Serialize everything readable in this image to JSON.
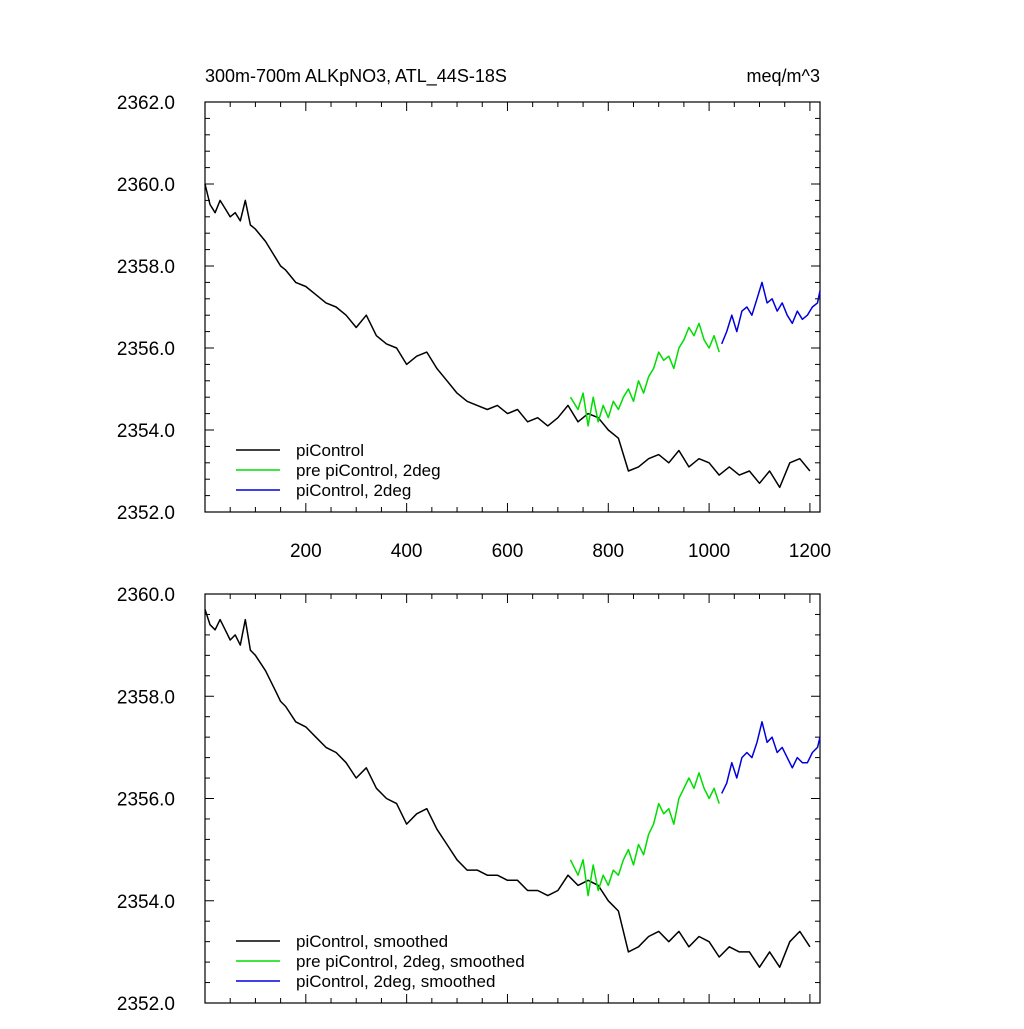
{
  "chart_data": [
    {
      "type": "line",
      "title": "300m-700m ALKpNO3, ATL_44S-18S",
      "units": "meq/m^3",
      "xlim": [
        0,
        1220
      ],
      "ylim": [
        2352.0,
        2362.0
      ],
      "x_ticks": [
        200,
        400,
        600,
        800,
        1000,
        1200
      ],
      "x_tick_labels": [
        "200",
        "400",
        "600",
        "800",
        "1000",
        "1200"
      ],
      "y_ticks": [
        2352.0,
        2354.0,
        2356.0,
        2358.0,
        2360.0,
        2362.0
      ],
      "y_tick_labels": [
        "2352.0",
        "2354.0",
        "2356.0",
        "2358.0",
        "2360.0",
        "2362.0"
      ],
      "legend_position": "bottom-left",
      "grid": false,
      "series": [
        {
          "name": "piControl",
          "color": "#000000",
          "x": [
            0,
            10,
            20,
            30,
            40,
            50,
            60,
            70,
            80,
            90,
            100,
            120,
            140,
            150,
            160,
            180,
            200,
            220,
            240,
            260,
            280,
            300,
            320,
            340,
            360,
            380,
            400,
            420,
            440,
            460,
            480,
            500,
            520,
            540,
            560,
            580,
            600,
            620,
            640,
            660,
            680,
            700,
            720,
            740,
            760,
            780,
            800,
            820,
            840,
            860,
            880,
            900,
            920,
            940,
            960,
            980,
            1000,
            1020,
            1040,
            1060,
            1080,
            1100,
            1120,
            1140,
            1160,
            1180,
            1200
          ],
          "values": [
            2360.0,
            2359.5,
            2359.3,
            2359.6,
            2359.4,
            2359.2,
            2359.3,
            2359.1,
            2359.6,
            2359.0,
            2358.9,
            2358.6,
            2358.2,
            2358.0,
            2357.9,
            2357.6,
            2357.5,
            2357.3,
            2357.1,
            2357.0,
            2356.8,
            2356.5,
            2356.8,
            2356.3,
            2356.1,
            2356.0,
            2355.6,
            2355.8,
            2355.9,
            2355.5,
            2355.2,
            2354.9,
            2354.7,
            2354.6,
            2354.5,
            2354.6,
            2354.4,
            2354.5,
            2354.2,
            2354.3,
            2354.1,
            2354.3,
            2354.6,
            2354.2,
            2354.4,
            2354.3,
            2354.0,
            2353.8,
            2353.0,
            2353.1,
            2353.3,
            2353.4,
            2353.2,
            2353.5,
            2353.1,
            2353.3,
            2353.2,
            2352.9,
            2353.1,
            2352.9,
            2353.0,
            2352.7,
            2353.0,
            2352.6,
            2353.2,
            2353.3,
            2353.0
          ]
        },
        {
          "name": "pre piControl, 2deg",
          "color": "#00dd00",
          "x": [
            725,
            740,
            750,
            760,
            770,
            780,
            790,
            800,
            810,
            820,
            830,
            840,
            850,
            860,
            870,
            880,
            890,
            900,
            910,
            920,
            930,
            940,
            950,
            960,
            970,
            980,
            990,
            1000,
            1010,
            1020
          ],
          "values": [
            2354.8,
            2354.5,
            2354.9,
            2354.1,
            2354.8,
            2354.2,
            2354.6,
            2354.3,
            2354.7,
            2354.5,
            2354.8,
            2355.0,
            2354.7,
            2355.2,
            2354.9,
            2355.3,
            2355.5,
            2355.9,
            2355.7,
            2355.8,
            2355.5,
            2356.0,
            2356.2,
            2356.5,
            2356.3,
            2356.6,
            2356.2,
            2356.0,
            2356.3,
            2355.9
          ]
        },
        {
          "name": "piControl, 2deg",
          "color": "#0000dd",
          "x": [
            1025,
            1035,
            1045,
            1055,
            1065,
            1075,
            1085,
            1095,
            1105,
            1115,
            1125,
            1135,
            1145,
            1155,
            1165,
            1175,
            1185,
            1195,
            1205,
            1215,
            1220
          ],
          "values": [
            2356.1,
            2356.4,
            2356.8,
            2356.4,
            2356.9,
            2357.0,
            2356.8,
            2357.2,
            2357.6,
            2357.1,
            2357.2,
            2356.9,
            2357.1,
            2356.8,
            2356.6,
            2356.9,
            2356.7,
            2356.8,
            2357.0,
            2357.1,
            2357.4
          ]
        }
      ]
    },
    {
      "type": "line",
      "title": "",
      "xlim": [
        0,
        1220
      ],
      "ylim": [
        2352.0,
        2360.0
      ],
      "x_ticks": [
        200,
        400,
        600,
        800,
        1000,
        1200
      ],
      "y_ticks": [
        2352.0,
        2354.0,
        2356.0,
        2358.0,
        2360.0
      ],
      "y_tick_labels": [
        "2352.0",
        "2354.0",
        "2356.0",
        "2358.0",
        "2360.0"
      ],
      "legend_position": "bottom-left",
      "grid": false,
      "series": [
        {
          "name": "piControl, smoothed",
          "color": "#000000",
          "x": [
            0,
            10,
            20,
            30,
            40,
            50,
            60,
            70,
            80,
            90,
            100,
            120,
            140,
            150,
            160,
            180,
            200,
            220,
            240,
            260,
            280,
            300,
            320,
            340,
            360,
            380,
            400,
            420,
            440,
            460,
            480,
            500,
            520,
            540,
            560,
            580,
            600,
            620,
            640,
            660,
            680,
            700,
            720,
            740,
            760,
            780,
            800,
            820,
            840,
            860,
            880,
            900,
            920,
            940,
            960,
            980,
            1000,
            1020,
            1040,
            1060,
            1080,
            1100,
            1120,
            1140,
            1160,
            1180,
            1200
          ],
          "values": [
            2359.7,
            2359.4,
            2359.3,
            2359.5,
            2359.3,
            2359.1,
            2359.2,
            2359.0,
            2359.5,
            2358.9,
            2358.8,
            2358.5,
            2358.1,
            2357.9,
            2357.8,
            2357.5,
            2357.4,
            2357.2,
            2357.0,
            2356.9,
            2356.7,
            2356.4,
            2356.6,
            2356.2,
            2356.0,
            2355.9,
            2355.5,
            2355.7,
            2355.8,
            2355.4,
            2355.1,
            2354.8,
            2354.6,
            2354.6,
            2354.5,
            2354.5,
            2354.4,
            2354.4,
            2354.2,
            2354.2,
            2354.1,
            2354.2,
            2354.5,
            2354.3,
            2354.4,
            2354.3,
            2354.0,
            2353.8,
            2353.0,
            2353.1,
            2353.3,
            2353.4,
            2353.2,
            2353.4,
            2353.1,
            2353.3,
            2353.2,
            2352.9,
            2353.1,
            2353.0,
            2353.0,
            2352.7,
            2353.0,
            2352.7,
            2353.2,
            2353.4,
            2353.1
          ]
        },
        {
          "name": "pre piControl, 2deg, smoothed",
          "color": "#00dd00",
          "x": [
            725,
            740,
            750,
            760,
            770,
            780,
            790,
            800,
            810,
            820,
            830,
            840,
            850,
            860,
            870,
            880,
            890,
            900,
            910,
            920,
            930,
            940,
            950,
            960,
            970,
            980,
            990,
            1000,
            1010,
            1020
          ],
          "values": [
            2354.8,
            2354.5,
            2354.8,
            2354.1,
            2354.7,
            2354.2,
            2354.5,
            2354.3,
            2354.6,
            2354.5,
            2354.8,
            2355.0,
            2354.7,
            2355.1,
            2354.9,
            2355.3,
            2355.5,
            2355.9,
            2355.7,
            2355.8,
            2355.5,
            2356.0,
            2356.2,
            2356.4,
            2356.2,
            2356.5,
            2356.2,
            2356.0,
            2356.2,
            2355.9
          ]
        },
        {
          "name": "piControl, 2deg, smoothed",
          "color": "#0000dd",
          "x": [
            1025,
            1035,
            1045,
            1055,
            1065,
            1075,
            1085,
            1095,
            1105,
            1115,
            1125,
            1135,
            1145,
            1155,
            1165,
            1175,
            1185,
            1195,
            1205,
            1215,
            1220
          ],
          "values": [
            2356.1,
            2356.3,
            2356.7,
            2356.4,
            2356.8,
            2356.9,
            2356.8,
            2357.1,
            2357.5,
            2357.1,
            2357.2,
            2356.9,
            2357.0,
            2356.8,
            2356.6,
            2356.8,
            2356.7,
            2356.7,
            2356.9,
            2357.0,
            2357.2
          ]
        }
      ]
    }
  ]
}
